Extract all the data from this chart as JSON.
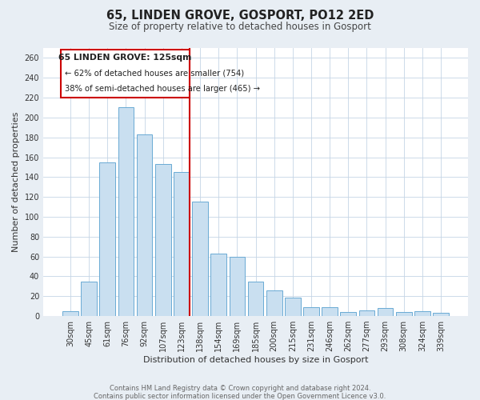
{
  "title": "65, LINDEN GROVE, GOSPORT, PO12 2ED",
  "subtitle": "Size of property relative to detached houses in Gosport",
  "xlabel": "Distribution of detached houses by size in Gosport",
  "ylabel": "Number of detached properties",
  "footnote1": "Contains HM Land Registry data © Crown copyright and database right 2024.",
  "footnote2": "Contains public sector information licensed under the Open Government Licence v3.0.",
  "bar_labels": [
    "30sqm",
    "45sqm",
    "61sqm",
    "76sqm",
    "92sqm",
    "107sqm",
    "123sqm",
    "138sqm",
    "154sqm",
    "169sqm",
    "185sqm",
    "200sqm",
    "215sqm",
    "231sqm",
    "246sqm",
    "262sqm",
    "277sqm",
    "293sqm",
    "308sqm",
    "324sqm",
    "339sqm"
  ],
  "bar_values": [
    5,
    35,
    155,
    210,
    183,
    153,
    145,
    115,
    63,
    60,
    35,
    26,
    19,
    9,
    9,
    4,
    6,
    8,
    4,
    5,
    3
  ],
  "bar_color": "#c9dff0",
  "bar_edge_color": "#6aaad4",
  "vline_color": "#cc0000",
  "vline_bar_index": 6,
  "annotation_title": "65 LINDEN GROVE: 125sqm",
  "annotation_line1": "← 62% of detached houses are smaller (754)",
  "annotation_line2": "38% of semi-detached houses are larger (465) →",
  "annotation_box_edge": "#cc0000",
  "ylim": [
    0,
    270
  ],
  "yticks": [
    0,
    20,
    40,
    60,
    80,
    100,
    120,
    140,
    160,
    180,
    200,
    220,
    240,
    260
  ],
  "bg_color": "#e8eef4",
  "plot_bg_color": "#ffffff",
  "grid_color": "#c5d5e5",
  "title_fontsize": 10.5,
  "subtitle_fontsize": 8.5,
  "axis_label_fontsize": 8,
  "tick_fontsize": 7,
  "footnote_fontsize": 6
}
